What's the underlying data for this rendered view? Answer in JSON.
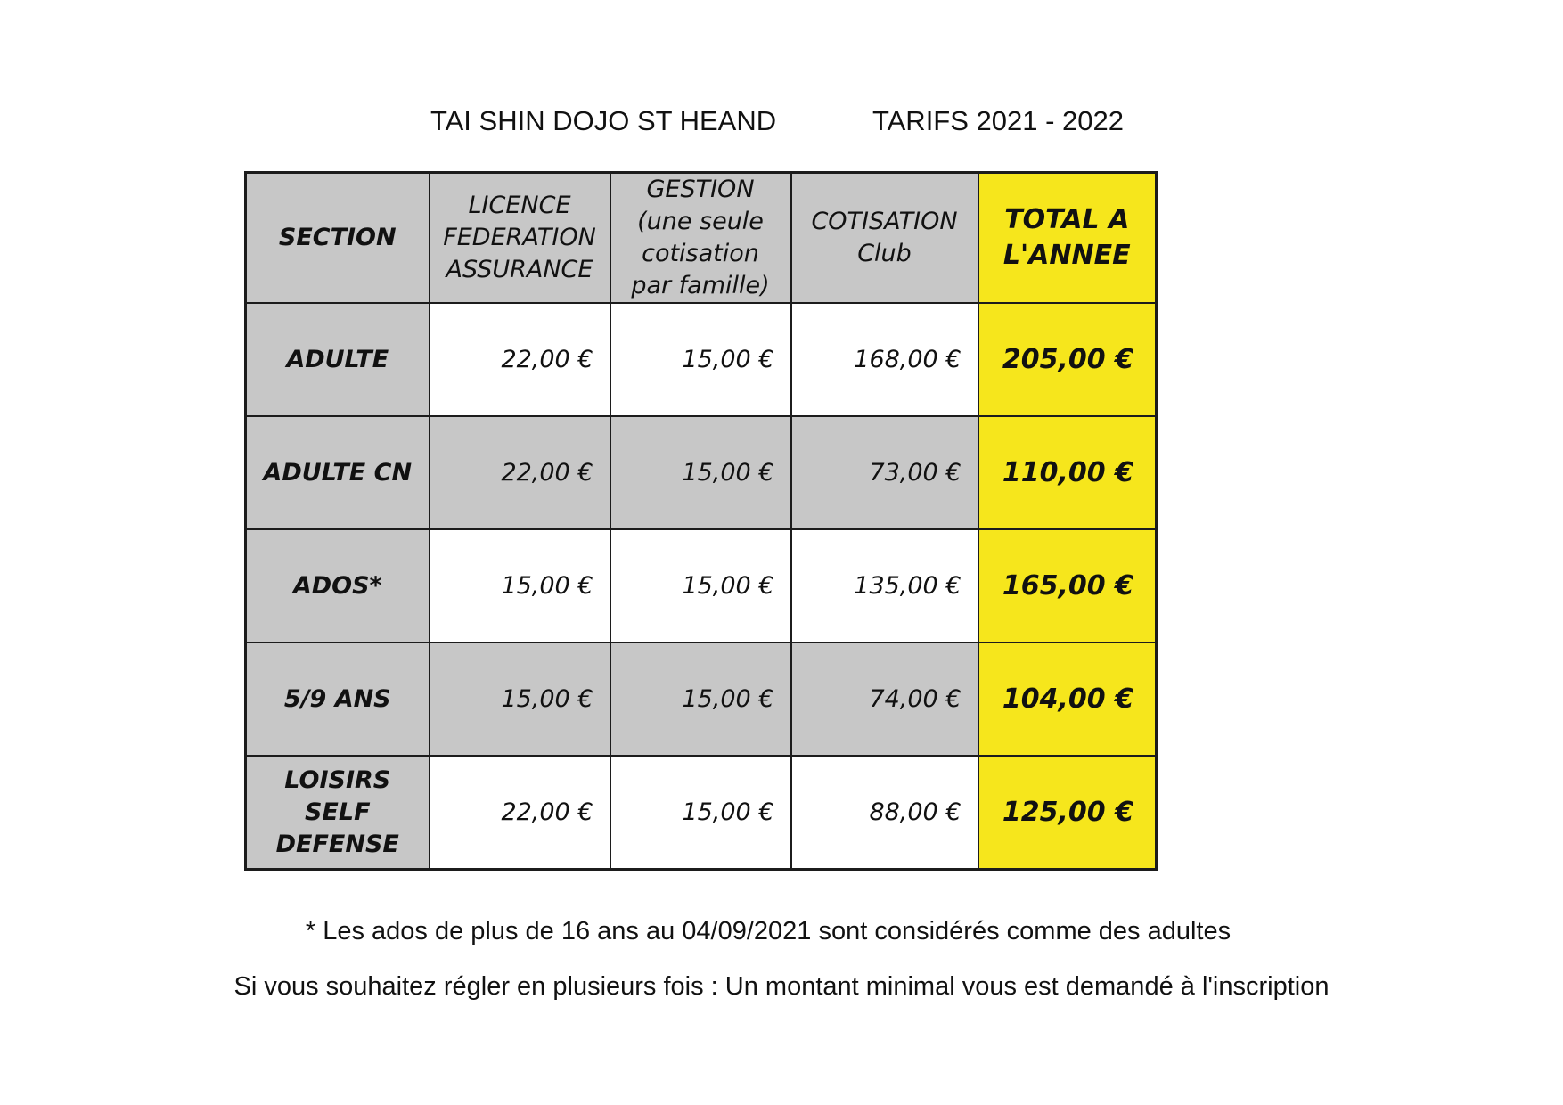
{
  "header": {
    "club_name": "TAI SHIN DOJO ST HEAND",
    "season": "TARIFS 2021 - 2022"
  },
  "table": {
    "columns": [
      {
        "label": "SECTION"
      },
      {
        "label": "LICENCE FEDERATION ASSURANCE"
      },
      {
        "label": "GESTION (une seule cotisation par famille)"
      },
      {
        "label": "COTISATION Club"
      },
      {
        "label": "TOTAL A L'ANNEE"
      }
    ],
    "rows": [
      {
        "section": "ADULTE",
        "licence": "22,00 €",
        "gestion": "15,00 €",
        "cotisation": "168,00 €",
        "total": "205,00 €"
      },
      {
        "section": "ADULTE CN",
        "licence": "22,00 €",
        "gestion": "15,00 €",
        "cotisation": "73,00 €",
        "total": "110,00 €"
      },
      {
        "section": "ADOS*",
        "licence": "15,00 €",
        "gestion": "15,00 €",
        "cotisation": "135,00 €",
        "total": "165,00 €"
      },
      {
        "section": "5/9 ANS",
        "licence": "15,00 €",
        "gestion": "15,00 €",
        "cotisation": "74,00 €",
        "total": "104,00 €"
      },
      {
        "section": "LOISIRS SELF DEFENSE",
        "licence": "22,00 €",
        "gestion": "15,00 €",
        "cotisation": "88,00 €",
        "total": "125,00 €"
      }
    ]
  },
  "notes": {
    "ados": "* Les ados de plus de 16 ans au 04/09/2021 sont considérés comme des adultes",
    "payment": "Si vous souhaitez régler en plusieurs fois : Un montant minimal vous est demandé à l'inscription"
  },
  "colors": {
    "header_grey": "#c7c7c7",
    "total_yellow": "#f6e61c",
    "border": "#1c1c1c"
  }
}
